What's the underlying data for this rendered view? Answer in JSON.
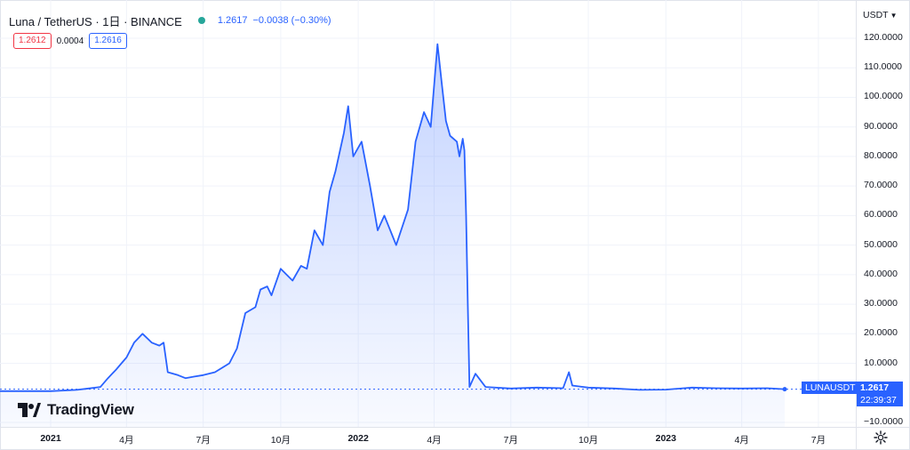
{
  "legend": {
    "symbol": "Luna / TetherUS · 1日 · BINANCE",
    "last_price": "1.2617",
    "change": "−0.0038 (−0.30%)",
    "status_color": "#26a69a"
  },
  "quote": {
    "bid": "1.2612",
    "spread": "0.0004",
    "ask": "1.2616"
  },
  "price_scale": {
    "currency": "USDT",
    "ticks": [
      "120.0000",
      "110.0000",
      "100.0000",
      "90.0000",
      "80.0000",
      "70.0000",
      "60.0000",
      "50.0000",
      "40.0000",
      "30.0000",
      "20.0000",
      "10.0000",
      "−10.0000"
    ],
    "symbol_tag": "LUNAUSDT",
    "price_tag": "1.2617",
    "countdown": "22:39:37"
  },
  "time_scale": {
    "labels": [
      "2021",
      "4月",
      "7月",
      "10月",
      "2022",
      "4月",
      "7月",
      "10月",
      "2023",
      "4月",
      "7月"
    ]
  },
  "brand": {
    "name": "TradingView",
    "logo_icon": "tradingview-logo-icon"
  },
  "colors": {
    "line": "#2962ff",
    "area_top": "rgba(41,98,255,0.28)",
    "area_bottom": "rgba(41,98,255,0.03)",
    "bid": "#f23645",
    "accent": "#2962ff"
  },
  "chart_data": {
    "type": "area",
    "title": "Luna / TetherUS · 1日 · BINANCE",
    "ylim": [
      -12,
      125
    ],
    "grid": true,
    "x_labels": [
      "2021",
      "4月",
      "7月",
      "10月",
      "2022",
      "4月",
      "7月",
      "10月",
      "2023",
      "4月",
      "7月"
    ],
    "series": [
      {
        "name": "LUNAUSDT",
        "x": [
          "2021-01-01",
          "2021-02-01",
          "2021-02-15",
          "2021-03-01",
          "2021-03-10",
          "2021-03-20",
          "2021-03-26",
          "2021-04-01",
          "2021-04-10",
          "2021-04-20",
          "2021-05-01",
          "2021-05-10",
          "2021-05-15",
          "2021-05-20",
          "2021-06-01",
          "2021-06-10",
          "2021-06-20",
          "2021-07-01",
          "2021-07-15",
          "2021-08-01",
          "2021-08-10",
          "2021-08-20",
          "2021-09-01",
          "2021-09-07",
          "2021-09-15",
          "2021-09-20",
          "2021-10-01",
          "2021-10-15",
          "2021-10-25",
          "2021-11-01",
          "2021-11-10",
          "2021-11-20",
          "2021-11-28",
          "2021-12-05",
          "2021-12-15",
          "2021-12-20",
          "2021-12-26",
          "2022-01-05",
          "2022-01-15",
          "2022-01-24",
          "2022-02-01",
          "2022-02-15",
          "2022-03-01",
          "2022-03-10",
          "2022-03-20",
          "2022-03-28",
          "2022-04-05",
          "2022-04-10",
          "2022-04-15",
          "2022-04-20",
          "2022-04-28",
          "2022-05-01",
          "2022-05-05",
          "2022-05-07",
          "2022-05-09",
          "2022-05-11",
          "2022-05-13",
          "2022-05-20",
          "2022-06-01",
          "2022-07-01",
          "2022-08-01",
          "2022-09-01",
          "2022-09-08",
          "2022-09-12",
          "2022-09-20",
          "2022-10-01",
          "2022-11-01",
          "2022-12-01",
          "2023-01-01",
          "2023-02-01",
          "2023-03-01",
          "2023-04-01",
          "2023-05-01",
          "2023-05-22"
        ],
        "values": [
          0.6,
          1.0,
          1.5,
          2.0,
          5.0,
          8.0,
          10.0,
          12.0,
          17.0,
          20.0,
          17.0,
          16.0,
          17.0,
          7.0,
          6.0,
          5.0,
          5.5,
          6.0,
          7.0,
          10.0,
          15.0,
          27.0,
          29.0,
          35.0,
          36.0,
          33.0,
          42.0,
          38.0,
          43.0,
          42.0,
          55.0,
          50.0,
          68.0,
          75.0,
          88.0,
          97.0,
          80.0,
          85.0,
          70.0,
          55.0,
          60.0,
          50.0,
          62.0,
          85.0,
          95.0,
          90.0,
          118.0,
          105.0,
          92.0,
          87.0,
          85.0,
          80.0,
          86.0,
          82.0,
          60.0,
          30.0,
          2.0,
          6.5,
          2.0,
          1.5,
          1.8,
          1.6,
          7.0,
          2.5,
          2.2,
          1.8,
          1.5,
          1.0,
          1.1,
          1.8,
          1.6,
          1.5,
          1.6,
          1.26
        ]
      }
    ]
  }
}
